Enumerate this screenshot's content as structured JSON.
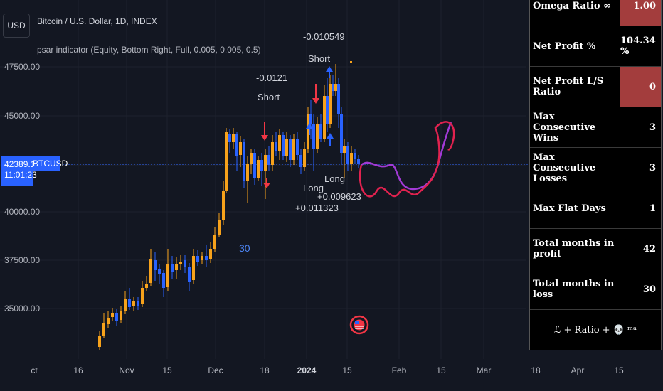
{
  "header": {
    "currency_button": "USD",
    "symbol_title": "Bitcoin / U.S. Dollar, 1D, INDEX",
    "indicator_title": "psar indicator (Equity, Bottom Right, Full, 0.005, 0.005, 0.5)"
  },
  "price_axis": {
    "ticks": [
      "47500.00",
      "45000.00",
      "40000.00",
      "37500.00",
      "35000.00"
    ],
    "current_price": "42389.18",
    "countdown": "11:01:23",
    "symbol": "BTCUSD"
  },
  "time_axis": {
    "ticks": [
      "ct",
      "16",
      "Nov",
      "15",
      "Dec",
      "18",
      "2024",
      "15",
      "Feb",
      "15",
      "Mar",
      "18",
      "Apr",
      "15"
    ]
  },
  "annotations": {
    "short1_value": "-0.0121",
    "short1_label": "Short",
    "short2_value": "-0.010549",
    "short2_label": "Short",
    "long1_label": "Long",
    "long1_value": "+0.011323",
    "long2_label": "Long",
    "long2_value": "+0.009623",
    "count_label": "30"
  },
  "stats_table": {
    "rows": [
      {
        "label": "Omega Ratio ∞",
        "value": "1.00",
        "highlight": true
      },
      {
        "label": "Net Profit %",
        "value": "104.34 %",
        "highlight": false
      },
      {
        "label": "Net Profit L/S Ratio",
        "value": "0",
        "highlight": true
      },
      {
        "label": "Max Consecutive Wins",
        "value": "3",
        "highlight": false
      },
      {
        "label": "Max Consecutive Losses",
        "value": "3",
        "highlight": false
      },
      {
        "label": "Max Flat Days",
        "value": "1",
        "highlight": false
      },
      {
        "label": "Total months in profit",
        "value": "42",
        "highlight": false
      },
      {
        "label": "Total months in loss",
        "value": "30",
        "highlight": false
      }
    ],
    "footer": "ℒ + Ratio + 💀 ᵐᵃ"
  },
  "colors": {
    "up_candle": "#f7a21b",
    "down_candle": "#2962ff",
    "short_arrow": "#f23645",
    "long_arrow": "#2962ff",
    "price_badge": "#2962ff",
    "highlight_cell": "#a33d3d"
  }
}
